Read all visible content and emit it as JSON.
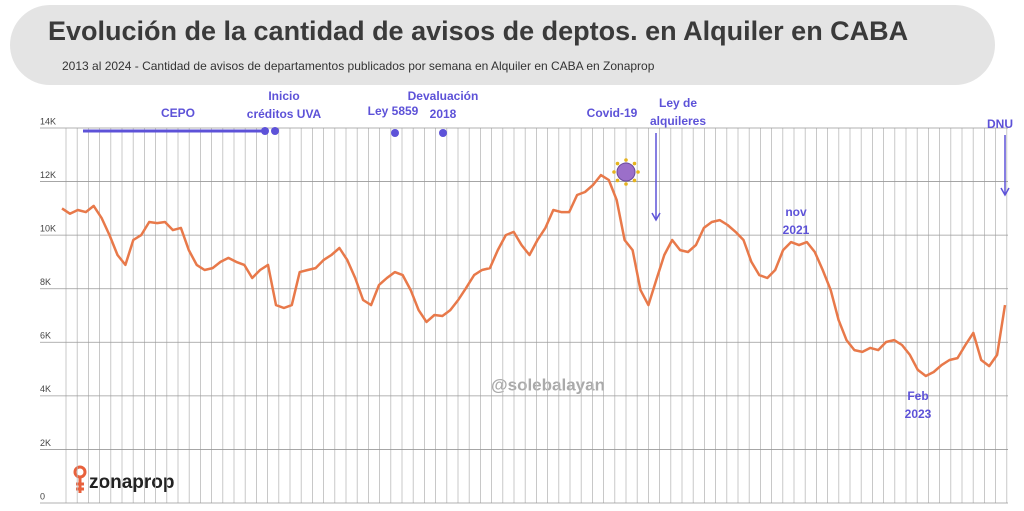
{
  "chart_data": {
    "type": "line",
    "title": "Evolución de la cantidad de avisos de deptos. en Alquiler en CABA",
    "subtitle": "2013 al 2024 - Cantidad de avisos de departamentos publicados por semana en Alquiler en CABA en Zonaprop",
    "watermark": "@solebalayan",
    "logo": "zonaprop",
    "color": "#e8794a",
    "annotation_color": "#5d52d8",
    "grid": true,
    "ylim": [
      0,
      14000
    ],
    "yticks": [
      0,
      {
        "value": 2000,
        "label": "2K"
      },
      {
        "value": 4000,
        "label": "4K"
      },
      {
        "value": 6000,
        "label": "6K"
      },
      {
        "value": 8000,
        "label": "8K"
      },
      {
        "value": 10000,
        "label": "10K"
      },
      {
        "value": 12000,
        "label": "12K"
      },
      {
        "value": 14000,
        "label": "14K"
      }
    ],
    "values": [
      11000,
      10800,
      10940,
      10860,
      11090,
      10640,
      10000,
      9260,
      8890,
      9820,
      10000,
      10490,
      10450,
      10490,
      10190,
      10270,
      9440,
      8890,
      8700,
      8770,
      9000,
      9150,
      9000,
      8890,
      8400,
      8700,
      8890,
      7390,
      7280,
      7390,
      8620,
      8700,
      8770,
      9070,
      9260,
      9520,
      9070,
      8400,
      7580,
      7390,
      8140,
      8400,
      8620,
      8510,
      7950,
      7200,
      6760,
      7020,
      6980,
      7200,
      7580,
      8030,
      8510,
      8700,
      8770,
      9440,
      10000,
      10120,
      9630,
      9260,
      9820,
      10270,
      10940,
      10860,
      10860,
      11500,
      11610,
      11870,
      12240,
      12060,
      11310,
      9820,
      9440,
      7950,
      7390,
      8330,
      9260,
      9820,
      9440,
      9370,
      9630,
      10270,
      10490,
      10560,
      10380,
      10120,
      9820,
      9000,
      8510,
      8400,
      8700,
      9440,
      9740,
      9630,
      9740,
      9370,
      8700,
      7950,
      6830,
      6080,
      5710,
      5640,
      5790,
      5710,
      6010,
      6080,
      5900,
      5530,
      4970,
      4740,
      4890,
      5150,
      5340,
      5410,
      5900,
      6350,
      5340,
      5110,
      5530,
      7390
    ],
    "annotations": [
      {
        "lines": [
          "CEPO"
        ]
      },
      {
        "lines": [
          "Inicio",
          "créditos UVA"
        ]
      },
      {
        "lines": [
          "Ley 5859"
        ]
      },
      {
        "lines": [
          "Devaluación",
          "2018"
        ]
      },
      {
        "lines": [
          "Covid-19"
        ]
      },
      {
        "lines": [
          "Ley de",
          "alquileres"
        ]
      },
      {
        "lines": [
          "DNU"
        ]
      },
      {
        "lines": [
          "nov",
          "2021"
        ]
      },
      {
        "lines": [
          "Feb",
          "2023"
        ]
      }
    ]
  }
}
